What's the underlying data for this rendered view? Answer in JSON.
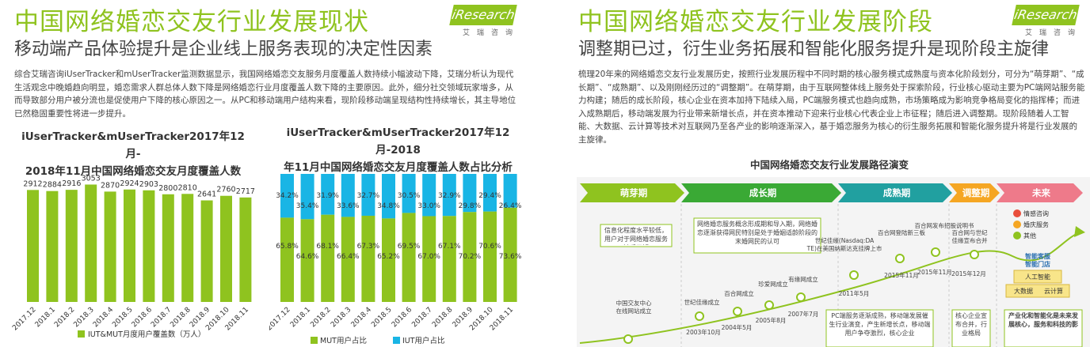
{
  "left": {
    "title": "中国网络婚恋交友行业发展现状",
    "subtitle": "移动端产品体验提升是企业线上服务表现的决定性因素",
    "logo": {
      "brand": "iResearch",
      "sub": "艾瑞咨询"
    },
    "paragraph": "综合艾瑞咨询iUserTracker和mUserTracker监测数据显示，我国网络婚恋交友服务月度覆盖人数持续小幅波动下降，艾瑞分析认为现代生活观念中晚婚趋向明显，婚恋需求人群总体人数下降是网络婚恋行业月度覆盖人数下降的主要原因。此外，细分社交领域玩家增多，从而导致部分用户被分流也是促使用户下降的核心原因之一。从PC和移动端用户结构来看，现阶段移动端呈现结构性持续增长，其主导地位已然稳固重要性将进一步提升。",
    "chart1_title_line1": "iUserTracker&mUserTracker2017年12月-",
    "chart1_title_line2": "2018年11月中国网络婚恋交友月度覆盖人数",
    "chart2_title_line1": "iUserTracker&mUserTracker2017年12月-2018",
    "chart2_title_line2": "年11月中国网络婚恋交友月度覆盖人数占比分析"
  },
  "right": {
    "title": "中国网络婚恋交友行业发展阶段",
    "subtitle": "调整期已过，衍生业务拓展和智能化服务提升是现阶段主旋律",
    "logo": {
      "brand": "iResearch",
      "sub": "艾瑞咨询"
    },
    "paragraph": "梳理20年来的网络婚恋交友行业发展历史，按照行业发展历程中不同时期的核心服务模式成熟度与资本化阶段划分，可分为“萌芽期”、“成长期”、“成熟期”、以及刚刚经历过的“调整期”。在萌芽期，由于互联网整体线上服务处于探索阶段，行业核心驱动主要为PC端网站服务能力构建；随后的成长阶段，核心企业在资本加持下陆续入局，PC端服务模式也趋向成熟，市场策略成为影响竞争格局变化的指挥棒；而进入成熟期后，移动端发展为行业带来新增长点，并在资本推动下迎来行业核心代表企业上市征程；随后进入调整期。现阶段随着人工智能、大数据、云计算等技术对互联网乃至各产业的影响逐渐深入，基于婚恋服务为核心的衍生服务拓展和智能化服务提升将是行业发展的主旋律。",
    "diagram_title": "中国网络婚恋交友行业发展路径演变",
    "stages": [
      "萌芽期",
      "成长期",
      "成熟期",
      "调整期",
      "未来"
    ],
    "stage_colors": [
      "#8fc31f",
      "#3aa935",
      "#21a0a0",
      "#f5a623",
      "#ee7a8a"
    ],
    "stage_notes": [
      "信息化程度水平较低，用户对于网络婚恋服务缺乏了解",
      "网络婚恋服务概念形成期和导入期，网络婚恋逐渐获得网民特别是处于婚姻适龄阶段的末婚网民的认可",
      "PC端服务逐渐成熟，移动端发展催生行业演变，产生新增长点，移动端用户争夺激烈，核心企业",
      "核心企业宣布合并，行业格局",
      "产业化和智能化是未来发展核心，服务和科技的影"
    ],
    "events": [
      {
        "label": "中国交友中心在线网站成立",
        "year": ""
      },
      {
        "label": "世纪佳缘成立",
        "year": "2003年10月"
      },
      {
        "label": "百合网成立",
        "year": "2004年5月"
      },
      {
        "label": "珍爱网成立",
        "year": "2005年8月"
      },
      {
        "label": "有缘网成立",
        "year": "2007年7月"
      },
      {
        "label": "世纪佳缘(Nasdaq:DATE)在美国纳斯达克挂牌上市",
        "year": "2011年5月"
      },
      {
        "label": "百合网登陆新三板",
        "year": "2015年11月"
      },
      {
        "label": "百合网发布招股说明书",
        "year": "2015年11月"
      },
      {
        "label": "百合网与世纪佳缘宣布合并",
        "year": "2015年12月"
      }
    ],
    "future_items": [
      "情感咨询",
      "婚庆服务",
      "其他"
    ],
    "future_blocks": [
      "智能客服",
      "智能门店",
      "人工智能",
      "大数据",
      "云计算"
    ]
  },
  "chart_data": [
    {
      "type": "bar",
      "categories": [
        "2017.12",
        "2018.1",
        "2018.2",
        "2018.3",
        "2018.4",
        "2018.5",
        "2018.6",
        "2018.7",
        "2018.8",
        "2018.9",
        "2018.10",
        "2018.11"
      ],
      "values": [
        2912,
        2884,
        2916,
        3053,
        2870,
        2924,
        2903,
        2800,
        2810,
        2641,
        2760,
        2717
      ],
      "ylim": [
        0,
        3700
      ],
      "legend": [
        "IUT&MUT月度用户覆盖数（万人）"
      ],
      "legend_position": "bottom",
      "color": "#8fc31f",
      "grid": false
    },
    {
      "type": "bar",
      "stacked": true,
      "percent": true,
      "categories": [
        "2017.12",
        "2018.1",
        "2018.2",
        "2018.3",
        "2018.4",
        "2018.5",
        "2018.6",
        "2018.7",
        "2018.8",
        "2018.9",
        "2018.10",
        "2018.11"
      ],
      "series": [
        {
          "name": "MUT用户占比",
          "values": [
            65.8,
            64.6,
            68.1,
            66.4,
            67.3,
            65.2,
            69.5,
            67.0,
            67.1,
            70.2,
            70.6,
            73.6
          ],
          "color": "#8fc31f"
        },
        {
          "name": "IUT用户占比",
          "values": [
            34.2,
            35.4,
            31.9,
            33.6,
            32.7,
            34.8,
            30.5,
            33.0,
            32.9,
            29.8,
            29.4,
            26.4
          ],
          "color": "#19b5e5"
        }
      ],
      "legend_position": "bottom",
      "grid": false
    }
  ]
}
